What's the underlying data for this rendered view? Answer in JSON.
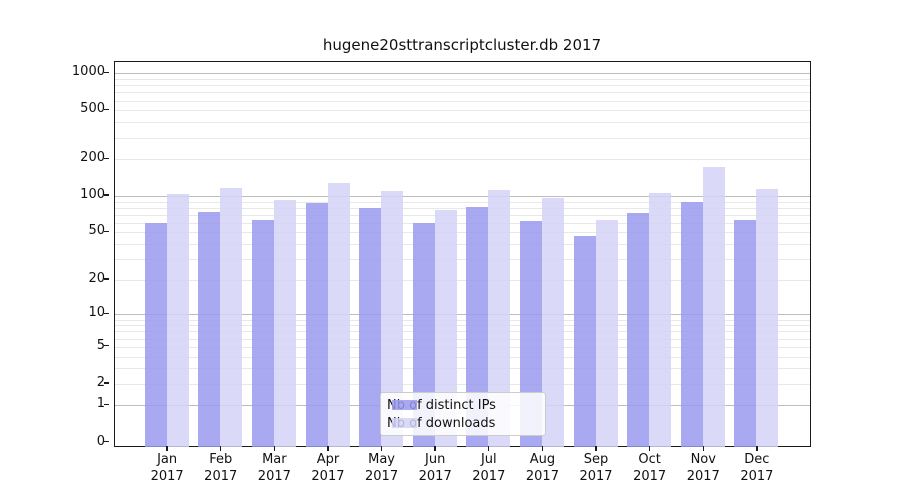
{
  "title": "hugene20sttranscriptcluster.db 2017",
  "axis": {
    "y_tick_labels": [
      "0",
      "1",
      "2",
      "5",
      "10",
      "20",
      "50",
      "100",
      "200",
      "500",
      "1000"
    ],
    "x_year": "2017"
  },
  "legend": {
    "items": [
      {
        "label": "Nb of distinct IPs",
        "color": "#9a9aef"
      },
      {
        "label": "Nb of downloads",
        "color": "#d4d4f7"
      }
    ]
  },
  "chart_data": {
    "type": "bar",
    "title": "hugene20sttranscriptcluster.db 2017",
    "categories": [
      "Jan",
      "Feb",
      "Mar",
      "Apr",
      "May",
      "Jun",
      "Jul",
      "Aug",
      "Sep",
      "Oct",
      "Nov",
      "Dec"
    ],
    "year": "2017",
    "series": [
      {
        "name": "Nb of distinct IPs",
        "color": "#9a9aef",
        "values": [
          60,
          74,
          64,
          88,
          80,
          60,
          81,
          62,
          47,
          72,
          90,
          64
        ]
      },
      {
        "name": "Nb of downloads",
        "color": "#d4d4f7",
        "values": [
          103,
          116,
          93,
          127,
          110,
          77,
          111,
          97,
          64,
          106,
          173,
          114
        ]
      }
    ],
    "yscale": "log1p",
    "y_ticks": [
      0,
      1,
      2,
      5,
      10,
      20,
      50,
      100,
      200,
      500,
      1000
    ],
    "ylim": [
      0,
      1250
    ],
    "grid": "both",
    "legend_position": "lower center"
  }
}
